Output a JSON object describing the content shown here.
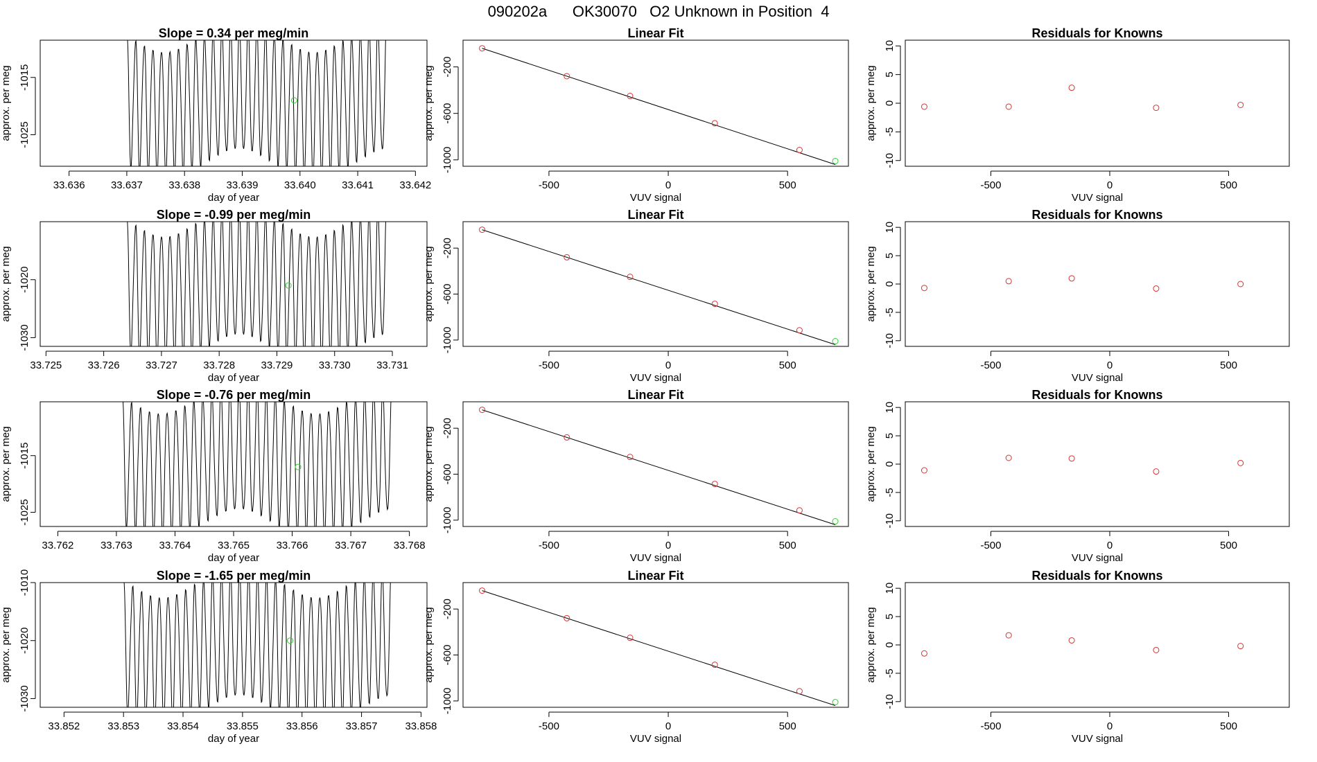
{
  "page_title": "090202a      OK30070   O2 Unknown in Position  4",
  "colors": {
    "axis": "#000000",
    "trace": "#000000",
    "known_point": "#d63333",
    "unknown_point": "#33cc33"
  },
  "chart_data": [
    {
      "type": "line",
      "id": "timeseries-1",
      "title": "Slope =  0.34  per meg/min",
      "xlabel": "day of year",
      "ylabel": "approx. per meg",
      "xlim": [
        33.6355,
        33.6422
      ],
      "ylim": [
        -1030.5,
        -1008.5
      ],
      "xticks": [
        "33.636",
        "33.637",
        "33.638",
        "33.639",
        "33.640",
        "33.641",
        "33.642"
      ],
      "yticks": [
        "-1015",
        "-1025"
      ],
      "xstart": 33.637,
      "xend": 33.6415,
      "n_cycles": 30,
      "center": -1019,
      "amplitude": 14,
      "marker": {
        "x": 33.6399,
        "y": -1019
      }
    },
    {
      "type": "line",
      "id": "timeseries-2",
      "title": "Slope =  -0.99  per meg/min",
      "xlabel": "day of year",
      "ylabel": "approx. per meg",
      "xlim": [
        33.7249,
        33.7316
      ],
      "ylim": [
        -1031.5,
        -1010
      ],
      "xticks": [
        "33.725",
        "33.726",
        "33.727",
        "33.728",
        "33.729",
        "33.730",
        "33.731"
      ],
      "yticks": [
        "-1020",
        "-1030"
      ],
      "xstart": 33.7264,
      "xend": 33.7309,
      "n_cycles": 30,
      "center": -1021,
      "amplitude": 14,
      "marker": {
        "x": 33.7292,
        "y": -1021
      }
    },
    {
      "type": "line",
      "id": "timeseries-3",
      "title": "Slope =  -0.76  per meg/min",
      "xlabel": "day of year",
      "ylabel": "approx. per meg",
      "xlim": [
        33.7617,
        33.7683
      ],
      "ylim": [
        -1027.5,
        -1005.5
      ],
      "xticks": [
        "33.762",
        "33.763",
        "33.764",
        "33.765",
        "33.766",
        "33.767",
        "33.768"
      ],
      "yticks": [
        "-1015",
        "-1025"
      ],
      "xstart": 33.7631,
      "xend": 33.7677,
      "n_cycles": 30,
      "center": -1016,
      "amplitude": 14,
      "marker": {
        "x": 33.7661,
        "y": -1017
      }
    },
    {
      "type": "line",
      "id": "timeseries-4",
      "title": "Slope =  -1.65  per meg/min",
      "xlabel": "day of year",
      "ylabel": "approx. per meg",
      "xlim": [
        33.8516,
        33.8581
      ],
      "ylim": [
        -1031.5,
        -1010
      ],
      "xticks": [
        "33.852",
        "33.853",
        "33.854",
        "33.855",
        "33.856",
        "33.857",
        "33.858"
      ],
      "yticks": [
        "-1010",
        "-1020",
        "-1030"
      ],
      "xstart": 33.853,
      "xend": 33.8575,
      "n_cycles": 30,
      "center": -1021,
      "amplitude": 14,
      "marker": {
        "x": 33.8558,
        "y": -1020
      }
    },
    {
      "type": "scatter",
      "id": "linear-fit-1",
      "title": "Linear Fit",
      "xlabel": "VUV signal",
      "ylabel": "approx. per meg",
      "xlim": [
        -860,
        755
      ],
      "ylim": [
        -1055,
        30
      ],
      "xticks": [
        "-500",
        "0",
        "500"
      ],
      "yticks": [
        "-200",
        "-600",
        "-1000"
      ],
      "line": {
        "x": [
          -780,
          700
        ],
        "y": [
          -40,
          -1040
        ]
      },
      "known_points": {
        "x": [
          -780,
          -425,
          -160,
          195,
          550
        ],
        "y": [
          -40,
          -280,
          -450,
          -685,
          -915
        ]
      },
      "unknown_point": {
        "x": 700,
        "y": -1010
      }
    },
    {
      "type": "scatter",
      "id": "linear-fit-2",
      "title": "Linear Fit",
      "xlabel": "VUV signal",
      "ylabel": "approx. per meg",
      "xlim": [
        -860,
        755
      ],
      "ylim": [
        -1055,
        30
      ],
      "xticks": [
        "-500",
        "0",
        "500"
      ],
      "yticks": [
        "-200",
        "-600",
        "-1000"
      ],
      "line": {
        "x": [
          -780,
          700
        ],
        "y": [
          -40,
          -1040
        ]
      },
      "known_points": {
        "x": [
          -780,
          -425,
          -160,
          195,
          550
        ],
        "y": [
          -40,
          -280,
          -450,
          -685,
          -915
        ]
      },
      "unknown_point": {
        "x": 700,
        "y": -1010
      }
    },
    {
      "type": "scatter",
      "id": "linear-fit-3",
      "title": "Linear Fit",
      "xlabel": "VUV signal",
      "ylabel": "approx. per meg",
      "xlim": [
        -860,
        755
      ],
      "ylim": [
        -1055,
        30
      ],
      "xticks": [
        "-500",
        "0",
        "500"
      ],
      "yticks": [
        "-200",
        "-600",
        "-1000"
      ],
      "line": {
        "x": [
          -780,
          700
        ],
        "y": [
          -40,
          -1040
        ]
      },
      "known_points": {
        "x": [
          -780,
          -425,
          -160,
          195,
          550
        ],
        "y": [
          -40,
          -280,
          -450,
          -685,
          -915
        ]
      },
      "unknown_point": {
        "x": 700,
        "y": -1010
      }
    },
    {
      "type": "scatter",
      "id": "linear-fit-4",
      "title": "Linear Fit",
      "xlabel": "VUV signal",
      "ylabel": "approx. per meg",
      "xlim": [
        -860,
        755
      ],
      "ylim": [
        -1055,
        30
      ],
      "xticks": [
        "-500",
        "0",
        "500"
      ],
      "yticks": [
        "-200",
        "-600",
        "-1000"
      ],
      "line": {
        "x": [
          -780,
          700
        ],
        "y": [
          -40,
          -1040
        ]
      },
      "known_points": {
        "x": [
          -780,
          -425,
          -160,
          195,
          550
        ],
        "y": [
          -40,
          -280,
          -450,
          -685,
          -915
        ]
      },
      "unknown_point": {
        "x": 700,
        "y": -1010
      }
    },
    {
      "type": "scatter",
      "id": "residuals-1",
      "title": "Residuals for Knowns",
      "xlabel": "VUV signal",
      "ylabel": "approx. per meg",
      "xlim": [
        -860,
        755
      ],
      "ylim": [
        -11,
        11
      ],
      "xticks": [
        "-500",
        "0",
        "500"
      ],
      "yticks": [
        "10",
        "5",
        "0",
        "-5",
        "-10"
      ],
      "known_points": {
        "x": [
          -780,
          -425,
          -160,
          195,
          550
        ],
        "y": [
          -0.6,
          -0.6,
          2.7,
          -0.8,
          -0.3
        ]
      }
    },
    {
      "type": "scatter",
      "id": "residuals-2",
      "title": "Residuals for Knowns",
      "xlabel": "VUV signal",
      "ylabel": "approx. per meg",
      "xlim": [
        -860,
        755
      ],
      "ylim": [
        -11,
        11
      ],
      "xticks": [
        "-500",
        "0",
        "500"
      ],
      "yticks": [
        "10",
        "5",
        "0",
        "-5",
        "-10"
      ],
      "known_points": {
        "x": [
          -780,
          -425,
          -160,
          195,
          550
        ],
        "y": [
          -0.7,
          0.5,
          1.0,
          -0.8,
          0.0
        ]
      }
    },
    {
      "type": "scatter",
      "id": "residuals-3",
      "title": "Residuals for Knowns",
      "xlabel": "VUV signal",
      "ylabel": "approx. per meg",
      "xlim": [
        -860,
        755
      ],
      "ylim": [
        -11,
        11
      ],
      "xticks": [
        "-500",
        "0",
        "500"
      ],
      "yticks": [
        "10",
        "5",
        "0",
        "-5",
        "-10"
      ],
      "known_points": {
        "x": [
          -780,
          -425,
          -160,
          195,
          550
        ],
        "y": [
          -1.1,
          1.1,
          1.0,
          -1.3,
          0.2
        ]
      }
    },
    {
      "type": "scatter",
      "id": "residuals-4",
      "title": "Residuals for Knowns",
      "xlabel": "VUV signal",
      "ylabel": "approx. per meg",
      "xlim": [
        -860,
        755
      ],
      "ylim": [
        -11,
        11
      ],
      "xticks": [
        "-500",
        "0",
        "500"
      ],
      "yticks": [
        "10",
        "5",
        "0",
        "-5",
        "-10"
      ],
      "known_points": {
        "x": [
          -780,
          -425,
          -160,
          195,
          550
        ],
        "y": [
          -1.5,
          1.7,
          0.8,
          -0.9,
          -0.2
        ]
      }
    }
  ]
}
